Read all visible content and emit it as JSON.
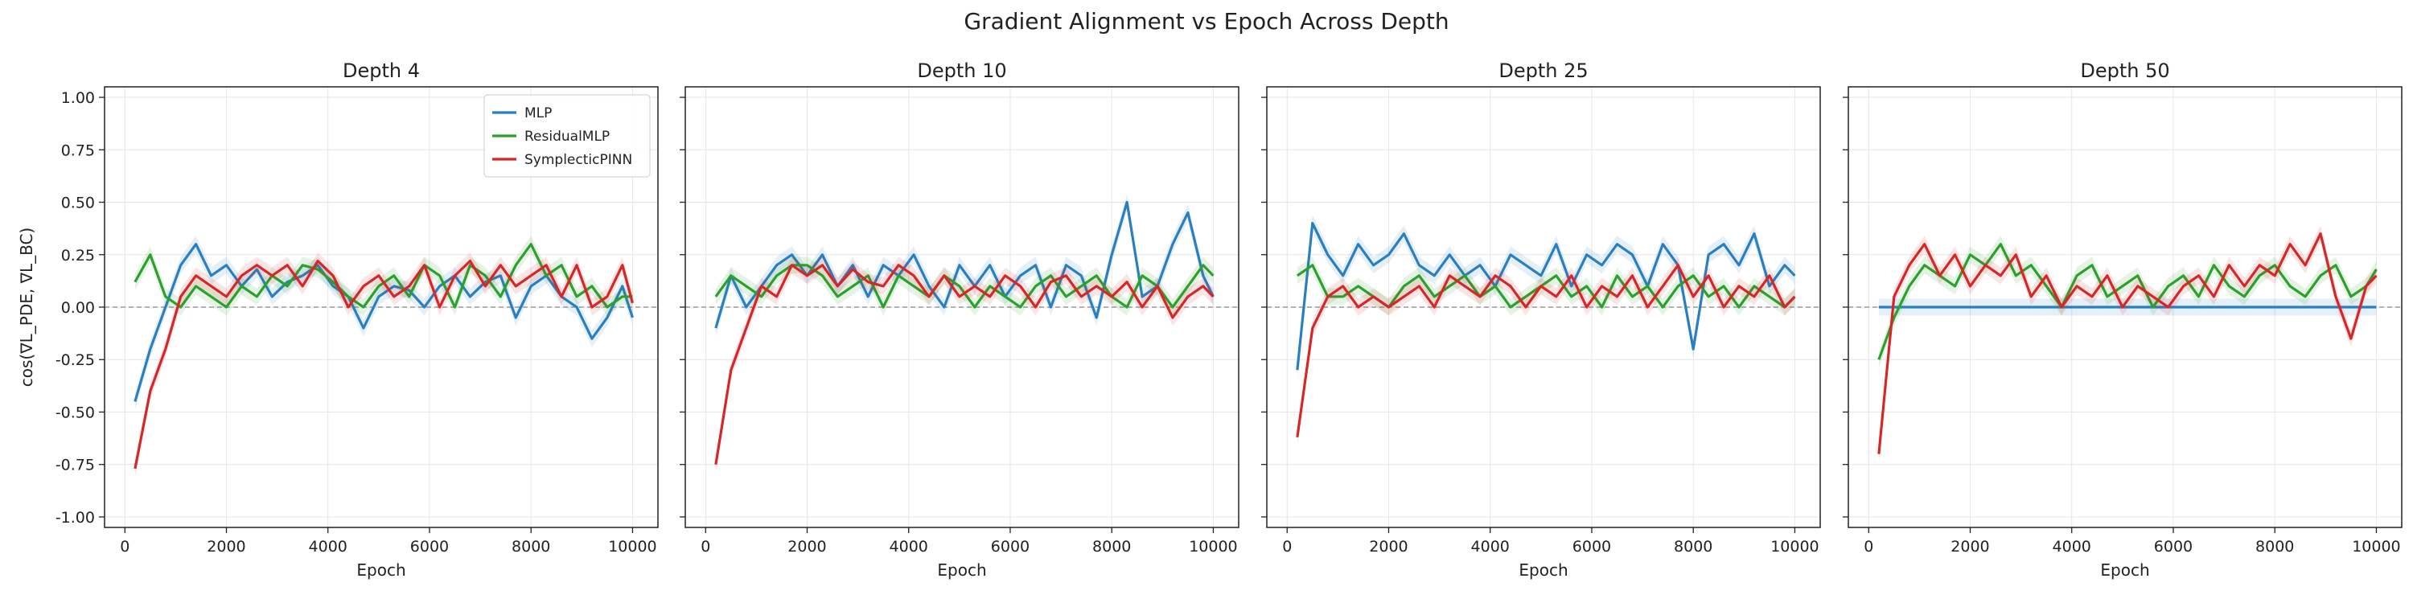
{
  "figure": {
    "title": "Gradient Alignment vs Epoch Across Depth"
  },
  "colors": {
    "MLP": "#2a7fc0",
    "ResidualMLP": "#2ca02c",
    "SymplecticPINN": "#d62728",
    "zero_line": "#999999"
  },
  "chart_data": [
    {
      "type": "line",
      "title": "Depth 4",
      "xlabel": "Epoch",
      "ylabel": "cos(∇L_PDE, ∇L_BC)",
      "xlim": [
        -400,
        10500
      ],
      "ylim": [
        -1.05,
        1.05
      ],
      "xticks": [
        0,
        2000,
        4000,
        6000,
        8000,
        10000
      ],
      "yticks": [
        -1.0,
        -0.75,
        -0.5,
        -0.25,
        0.0,
        0.25,
        0.5,
        0.75,
        1.0
      ],
      "grid": true,
      "legend": "top-right",
      "x": [
        200,
        500,
        800,
        1100,
        1400,
        1700,
        2000,
        2300,
        2600,
        2900,
        3200,
        3500,
        3800,
        4100,
        4400,
        4700,
        5000,
        5300,
        5600,
        5900,
        6200,
        6500,
        6800,
        7100,
        7400,
        7700,
        8000,
        8300,
        8600,
        8900,
        9200,
        9500,
        9800,
        10000
      ],
      "series": [
        {
          "name": "MLP",
          "values": [
            -0.45,
            -0.2,
            0.0,
            0.2,
            0.3,
            0.15,
            0.2,
            0.1,
            0.18,
            0.05,
            0.12,
            0.15,
            0.2,
            0.1,
            0.05,
            -0.1,
            0.05,
            0.1,
            0.08,
            0.0,
            0.1,
            0.15,
            0.05,
            0.12,
            0.15,
            -0.05,
            0.1,
            0.15,
            0.05,
            0.0,
            -0.15,
            -0.05,
            0.1,
            -0.05
          ]
        },
        {
          "name": "ResidualMLP",
          "values": [
            0.12,
            0.25,
            0.05,
            0.0,
            0.1,
            0.05,
            0.0,
            0.1,
            0.05,
            0.15,
            0.1,
            0.2,
            0.18,
            0.12,
            0.05,
            0.0,
            0.1,
            0.15,
            0.05,
            0.2,
            0.15,
            0.0,
            0.2,
            0.15,
            0.05,
            0.2,
            0.3,
            0.15,
            0.2,
            0.05,
            0.1,
            0.0,
            0.05,
            0.05
          ]
        },
        {
          "name": "SymplecticPINN",
          "values": [
            -0.77,
            -0.4,
            -0.2,
            0.05,
            0.15,
            0.1,
            0.05,
            0.15,
            0.2,
            0.15,
            0.2,
            0.1,
            0.22,
            0.15,
            0.0,
            0.1,
            0.15,
            0.05,
            0.1,
            0.2,
            0.0,
            0.15,
            0.22,
            0.1,
            0.2,
            0.1,
            0.15,
            0.2,
            0.05,
            0.2,
            0.0,
            0.05,
            0.2,
            0.02
          ]
        }
      ]
    },
    {
      "type": "line",
      "title": "Depth 10",
      "xlabel": "Epoch",
      "ylabel": "",
      "xlim": [
        -400,
        10500
      ],
      "ylim": [
        -1.05,
        1.05
      ],
      "xticks": [
        0,
        2000,
        4000,
        6000,
        8000,
        10000
      ],
      "yticks": [
        -1.0,
        -0.75,
        -0.5,
        -0.25,
        0.0,
        0.25,
        0.5,
        0.75,
        1.0
      ],
      "grid": true,
      "x": [
        200,
        500,
        800,
        1100,
        1400,
        1700,
        2000,
        2300,
        2600,
        2900,
        3200,
        3500,
        3800,
        4100,
        4400,
        4700,
        5000,
        5300,
        5600,
        5900,
        6200,
        6500,
        6800,
        7100,
        7400,
        7700,
        8000,
        8300,
        8600,
        8900,
        9200,
        9500,
        9800,
        10000
      ],
      "series": [
        {
          "name": "MLP",
          "values": [
            -0.1,
            0.15,
            0.0,
            0.1,
            0.2,
            0.25,
            0.15,
            0.25,
            0.1,
            0.2,
            0.05,
            0.2,
            0.15,
            0.25,
            0.1,
            0.0,
            0.2,
            0.1,
            0.2,
            0.05,
            0.15,
            0.2,
            0.0,
            0.2,
            0.15,
            -0.05,
            0.25,
            0.5,
            0.05,
            0.1,
            0.3,
            0.45,
            0.15,
            0.05
          ]
        },
        {
          "name": "ResidualMLP",
          "values": [
            0.05,
            0.15,
            0.1,
            0.05,
            0.15,
            0.2,
            0.2,
            0.15,
            0.05,
            0.1,
            0.15,
            0.0,
            0.15,
            0.1,
            0.05,
            0.15,
            0.1,
            0.0,
            0.1,
            0.05,
            0.0,
            0.1,
            0.15,
            0.05,
            0.1,
            0.15,
            0.05,
            0.0,
            0.15,
            0.1,
            0.0,
            0.1,
            0.2,
            0.15
          ]
        },
        {
          "name": "SymplecticPINN",
          "values": [
            -0.75,
            -0.3,
            -0.1,
            0.1,
            0.05,
            0.2,
            0.15,
            0.2,
            0.1,
            0.18,
            0.12,
            0.1,
            0.2,
            0.15,
            0.05,
            0.15,
            0.05,
            0.1,
            0.05,
            0.15,
            0.1,
            0.0,
            0.12,
            0.15,
            0.05,
            0.1,
            0.05,
            0.12,
            0.0,
            0.1,
            -0.05,
            0.05,
            0.1,
            0.05
          ]
        }
      ]
    },
    {
      "type": "line",
      "title": "Depth 25",
      "xlabel": "Epoch",
      "ylabel": "",
      "xlim": [
        -400,
        10500
      ],
      "ylim": [
        -1.05,
        1.05
      ],
      "xticks": [
        0,
        2000,
        4000,
        6000,
        8000,
        10000
      ],
      "yticks": [
        -1.0,
        -0.75,
        -0.5,
        -0.25,
        0.0,
        0.25,
        0.5,
        0.75,
        1.0
      ],
      "grid": true,
      "x": [
        200,
        500,
        800,
        1100,
        1400,
        1700,
        2000,
        2300,
        2600,
        2900,
        3200,
        3500,
        3800,
        4100,
        4400,
        4700,
        5000,
        5300,
        5600,
        5900,
        6200,
        6500,
        6800,
        7100,
        7400,
        7700,
        8000,
        8300,
        8600,
        8900,
        9200,
        9500,
        9800,
        10000
      ],
      "series": [
        {
          "name": "MLP",
          "values": [
            -0.3,
            0.4,
            0.25,
            0.15,
            0.3,
            0.2,
            0.25,
            0.35,
            0.2,
            0.15,
            0.25,
            0.15,
            0.2,
            0.1,
            0.25,
            0.2,
            0.15,
            0.3,
            0.1,
            0.25,
            0.2,
            0.3,
            0.25,
            0.1,
            0.3,
            0.2,
            -0.2,
            0.25,
            0.3,
            0.2,
            0.35,
            0.1,
            0.2,
            0.15
          ]
        },
        {
          "name": "ResidualMLP",
          "values": [
            0.15,
            0.2,
            0.05,
            0.05,
            0.1,
            0.05,
            0.0,
            0.1,
            0.15,
            0.05,
            0.1,
            0.15,
            0.05,
            0.1,
            0.0,
            0.05,
            0.1,
            0.15,
            0.05,
            0.1,
            0.0,
            0.15,
            0.05,
            0.1,
            0.0,
            0.1,
            0.15,
            0.05,
            0.1,
            0.0,
            0.1,
            0.05,
            0.0,
            0.05
          ]
        },
        {
          "name": "SymplecticPINN",
          "values": [
            -0.62,
            -0.1,
            0.05,
            0.1,
            0.0,
            0.05,
            0.0,
            0.05,
            0.1,
            0.0,
            0.15,
            0.1,
            0.05,
            0.15,
            0.1,
            0.0,
            0.1,
            0.05,
            0.15,
            0.0,
            0.1,
            0.05,
            0.15,
            0.0,
            0.1,
            0.2,
            0.05,
            0.15,
            0.0,
            0.1,
            0.05,
            0.15,
            0.0,
            0.05
          ]
        }
      ]
    },
    {
      "type": "line",
      "title": "Depth 50",
      "xlabel": "Epoch",
      "ylabel": "",
      "xlim": [
        -400,
        10500
      ],
      "ylim": [
        -1.05,
        1.05
      ],
      "xticks": [
        0,
        2000,
        4000,
        6000,
        8000,
        10000
      ],
      "yticks": [
        -1.0,
        -0.75,
        -0.5,
        -0.25,
        0.0,
        0.25,
        0.5,
        0.75,
        1.0
      ],
      "grid": true,
      "x": [
        200,
        500,
        800,
        1100,
        1400,
        1700,
        2000,
        2300,
        2600,
        2900,
        3200,
        3500,
        3800,
        4100,
        4400,
        4700,
        5000,
        5300,
        5600,
        5900,
        6200,
        6500,
        6800,
        7100,
        7400,
        7700,
        8000,
        8300,
        8600,
        8900,
        9200,
        9500,
        9800,
        10000
      ],
      "series": [
        {
          "name": "MLP",
          "values": [
            0.0,
            0.0,
            0.0,
            0.0,
            0.0,
            0.0,
            0.0,
            0.0,
            0.0,
            0.0,
            0.0,
            0.0,
            0.0,
            0.0,
            0.0,
            0.0,
            0.0,
            0.0,
            0.0,
            0.0,
            0.0,
            0.0,
            0.0,
            0.0,
            0.0,
            0.0,
            0.0,
            0.0,
            0.0,
            0.0,
            0.0,
            0.0,
            0.0,
            0.0
          ]
        },
        {
          "name": "ResidualMLP",
          "values": [
            -0.25,
            -0.05,
            0.1,
            0.2,
            0.15,
            0.1,
            0.25,
            0.2,
            0.3,
            0.15,
            0.2,
            0.1,
            0.0,
            0.15,
            0.2,
            0.05,
            0.1,
            0.15,
            0.0,
            0.1,
            0.15,
            0.05,
            0.2,
            0.1,
            0.05,
            0.15,
            0.2,
            0.1,
            0.05,
            0.15,
            0.2,
            0.05,
            0.1,
            0.18
          ]
        },
        {
          "name": "SymplecticPINN",
          "values": [
            -0.7,
            0.05,
            0.2,
            0.3,
            0.15,
            0.25,
            0.1,
            0.2,
            0.15,
            0.25,
            0.05,
            0.15,
            0.0,
            0.1,
            0.05,
            0.15,
            0.0,
            0.1,
            0.05,
            0.0,
            0.1,
            0.15,
            0.05,
            0.2,
            0.1,
            0.2,
            0.15,
            0.3,
            0.2,
            0.35,
            0.05,
            -0.15,
            0.1,
            0.15
          ]
        }
      ]
    }
  ]
}
